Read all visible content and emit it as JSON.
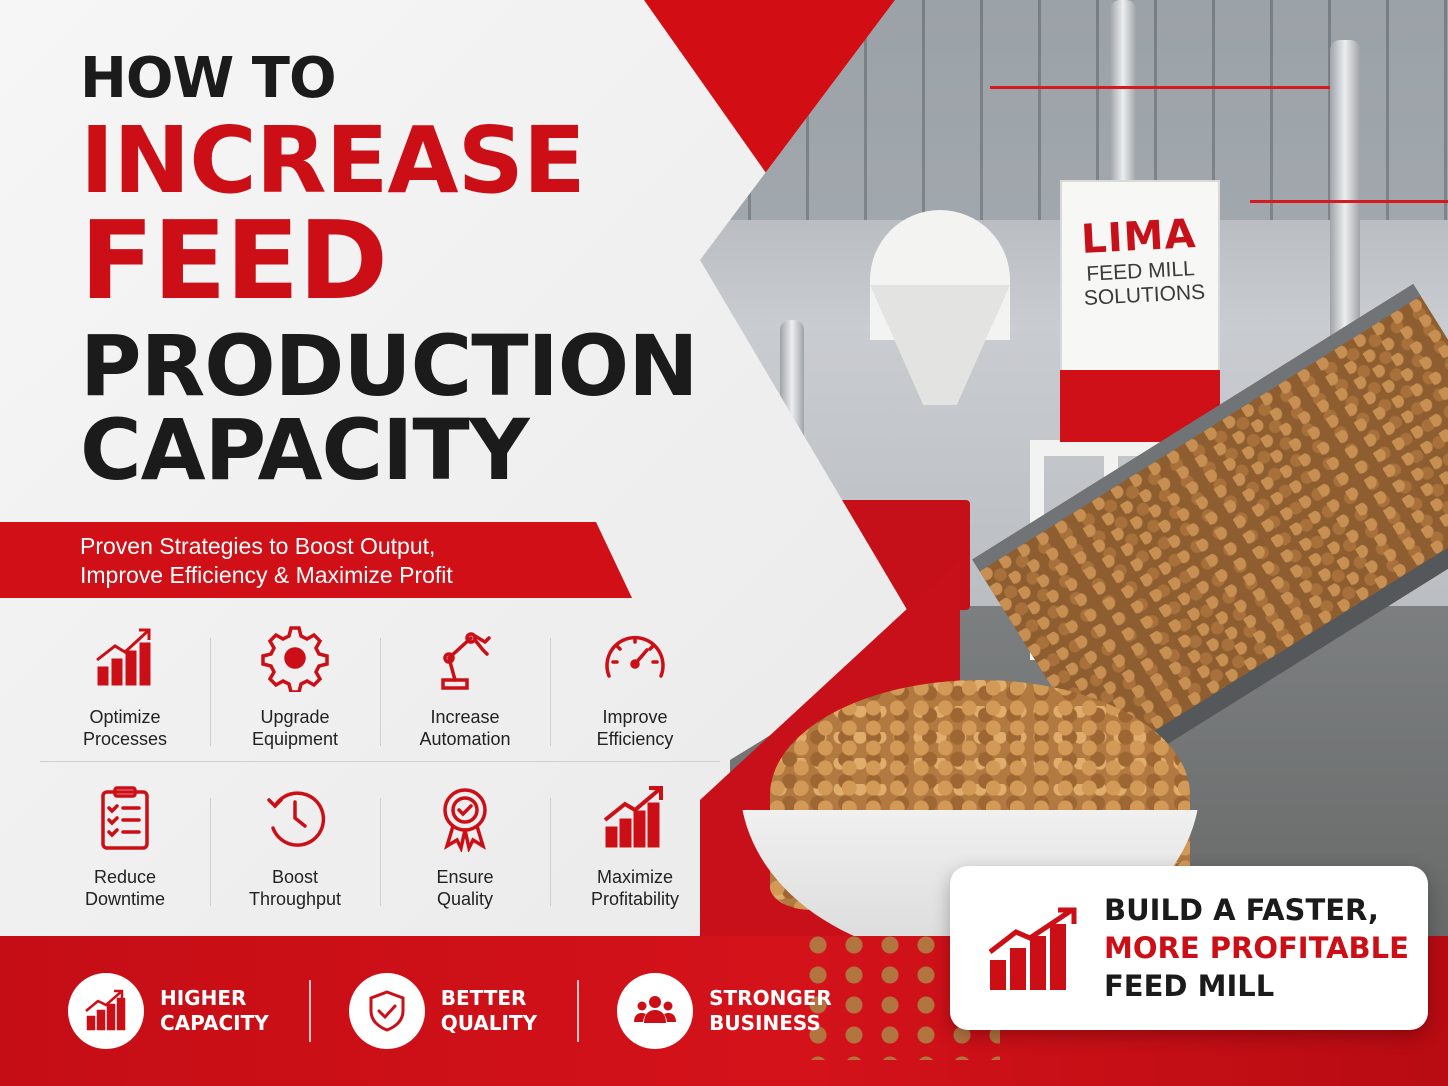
{
  "headline": {
    "line1": "HOW TO",
    "line2": "INCREASE",
    "line3": "FEED",
    "line4": "PRODUCTION",
    "line5": "CAPACITY"
  },
  "subtitle": {
    "line1": "Proven Strategies to Boost Output,",
    "line2": "Improve Efficiency & Maximize Profit"
  },
  "photo_sign": {
    "brand": "LIMA",
    "line1": "FEED MILL",
    "line2": "SOLUTIONS"
  },
  "strategies": [
    {
      "icon": "bar-chart-growth-icon",
      "line1": "Optimize",
      "line2": "Processes"
    },
    {
      "icon": "gear-icon",
      "line1": "Upgrade",
      "line2": "Equipment"
    },
    {
      "icon": "robot-arm-icon",
      "line1": "Increase",
      "line2": "Automation"
    },
    {
      "icon": "speedometer-icon",
      "line1": "Improve",
      "line2": "Efficiency"
    },
    {
      "icon": "clipboard-checklist-icon",
      "line1": "Reduce",
      "line2": "Downtime"
    },
    {
      "icon": "clock-icon",
      "line1": "Boost",
      "line2": "Throughput"
    },
    {
      "icon": "quality-badge-icon",
      "line1": "Ensure",
      "line2": "Quality"
    },
    {
      "icon": "profit-chart-icon",
      "line1": "Maximize",
      "line2": "Profitability"
    }
  ],
  "benefits": [
    {
      "icon": "growth-chart-icon",
      "line1": "HIGHER",
      "line2": "CAPACITY"
    },
    {
      "icon": "shield-check-icon",
      "line1": "BETTER",
      "line2": "QUALITY"
    },
    {
      "icon": "people-group-icon",
      "line1": "STRONGER",
      "line2": "BUSINESS"
    }
  ],
  "cta": {
    "line1": "BUILD A FASTER,",
    "line2": "MORE PROFITABLE",
    "line3": "FEED MILL"
  },
  "colors": {
    "brand_red": "#cc0f17",
    "dark_text": "#1b1b1b",
    "background": "#f1f1f1"
  }
}
